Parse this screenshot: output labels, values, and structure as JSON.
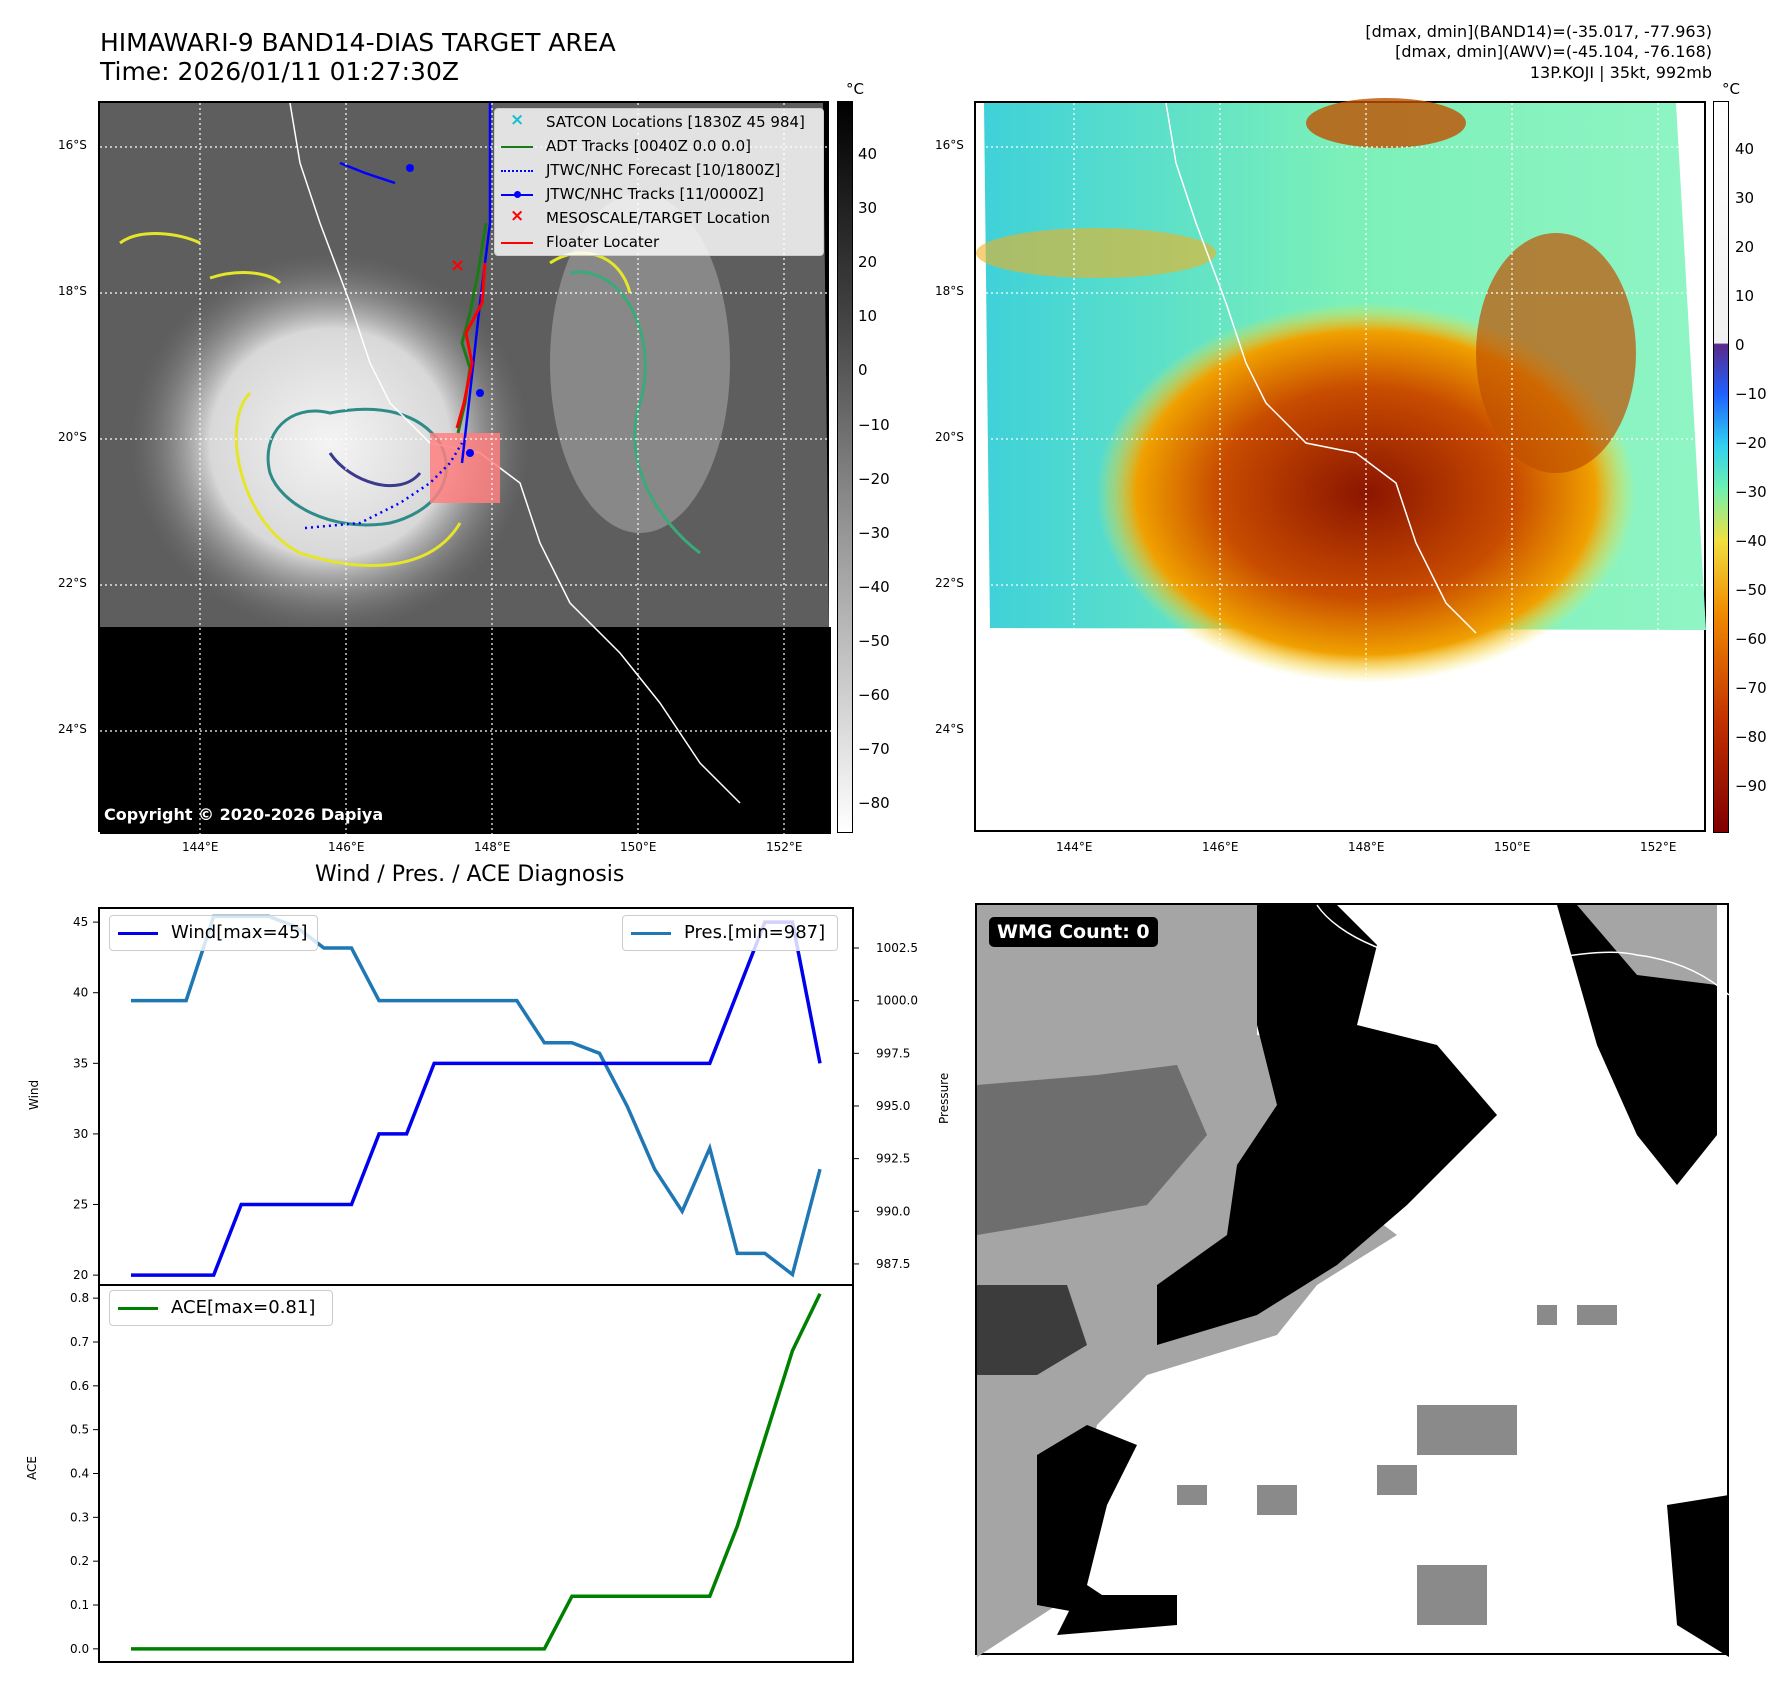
{
  "header": {
    "title_line1": "HIMAWARI-9 BAND14-DIAS TARGET AREA",
    "title_line2": "Time: 2026/01/11 01:27:30Z",
    "info_line1": "[dmax, dmin](BAND14)=(-35.017, -77.963)",
    "info_line2": "[dmax, dmin](AWV)=(-45.104, -76.168)",
    "info_line3": "13P.KOJI | 35kt, 992mb"
  },
  "map": {
    "lat_labels": [
      "16°S",
      "18°S",
      "20°S",
      "22°S",
      "24°S"
    ],
    "lon_labels": [
      "144°E",
      "146°E",
      "148°E",
      "150°E",
      "152°E"
    ],
    "copyright": "Copyright © 2020-2026 Dapiya",
    "colorbar_unit": "°C",
    "colorbar_ticks_left": [
      "40",
      "30",
      "20",
      "10",
      "0",
      "−10",
      "−20",
      "−30",
      "−40",
      "−50",
      "−60",
      "−70",
      "−80"
    ],
    "colorbar_ticks_right": [
      "40",
      "30",
      "20",
      "10",
      "0",
      "−10",
      "−20",
      "−30",
      "−40",
      "−50",
      "−60",
      "−70",
      "−80",
      "−90"
    ],
    "legend": [
      {
        "label": "SATCON Locations [1830Z 45 984]",
        "color": "#17becf",
        "marker": "x"
      },
      {
        "label": "ADT Tracks [0040Z 0.0 0.0]",
        "color": "#1a7a1a",
        "marker": "line"
      },
      {
        "label": "JTWC/NHC Forecast [10/1800Z]",
        "color": "#0000ff",
        "marker": "dotted"
      },
      {
        "label": "JTWC/NHC Tracks [11/0000Z]",
        "color": "#0000ff",
        "marker": "line-dot"
      },
      {
        "label": "MESOSCALE/TARGET Location",
        "color": "#ff0000",
        "marker": "x"
      },
      {
        "label": "Floater Locater",
        "color": "#ff0000",
        "marker": "line"
      }
    ]
  },
  "diagnosis": {
    "title": "Wind / Pres. / ACE Diagnosis",
    "wind_ylabel": "Wind",
    "pres_ylabel": "Pressure",
    "ace_ylabel": "ACE",
    "wind_legend": "Wind[max=45]",
    "pres_legend": "Pres.[min=987]",
    "ace_legend": "ACE[max=0.81]"
  },
  "chart_data": [
    {
      "type": "line",
      "title": "Wind / Pres. / ACE Diagnosis",
      "series": [
        {
          "name": "Wind[max=45]",
          "axis": "left",
          "color": "#0000ee",
          "values": [
            20,
            20,
            20,
            20,
            25,
            25,
            25,
            25,
            25,
            30,
            30,
            35,
            35,
            35,
            35,
            35,
            35,
            35,
            35,
            35,
            35,
            35,
            40,
            45,
            45,
            35
          ]
        },
        {
          "name": "Pres.[min=987]",
          "axis": "right",
          "color": "#1f77b4",
          "values": [
            1000,
            1000,
            1000,
            1004,
            1004,
            1004,
            1003.5,
            1002.5,
            1002.5,
            1000,
            1000,
            1000,
            1000,
            1000,
            1000,
            998,
            998,
            997.5,
            995,
            992,
            990,
            993,
            988,
            988,
            987,
            992
          ]
        }
      ],
      "ylim_left": [
        19.3,
        46
      ],
      "ylim_right": [
        986.5,
        1004.4
      ],
      "yticks_left": [
        "20",
        "25",
        "30",
        "35",
        "40",
        "45"
      ],
      "yticks_right": [
        "987.5",
        "990.0",
        "992.5",
        "995.0",
        "997.5",
        "1000.0",
        "1002.5"
      ]
    },
    {
      "type": "line",
      "series": [
        {
          "name": "ACE[max=0.81]",
          "color": "#008000",
          "values": [
            0,
            0,
            0,
            0,
            0,
            0,
            0,
            0,
            0,
            0,
            0,
            0,
            0,
            0,
            0,
            0,
            0.12,
            0.12,
            0.12,
            0.12,
            0.12,
            0.12,
            0.28,
            0.48,
            0.68,
            0.81
          ]
        }
      ],
      "ylim": [
        -0.03,
        0.83
      ],
      "yticks": [
        "0.0",
        "0.1",
        "0.2",
        "0.3",
        "0.4",
        "0.5",
        "0.6",
        "0.7",
        "0.8"
      ]
    }
  ],
  "wmg": {
    "badge": "WMG Count: 0"
  }
}
